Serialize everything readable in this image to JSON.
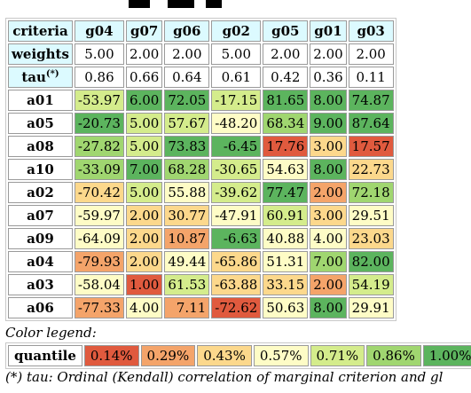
{
  "colors": {
    "q1": "#e05a3e",
    "q2": "#f4a46a",
    "q3": "#fcd88c",
    "q4": "#fefcc6",
    "q5": "#d4ec8c",
    "q6": "#a0d670",
    "q7": "#5cb45e",
    "header_bg": "#dcfaff"
  },
  "table": {
    "criteria_label": "criteria",
    "weights_label": "weights",
    "tau_label": "tau",
    "tau_mark": "(*)",
    "columns": [
      "g04",
      "g07",
      "g06",
      "g02",
      "g05",
      "g01",
      "g03"
    ],
    "weights": [
      "5.00",
      "2.00",
      "2.00",
      "5.00",
      "2.00",
      "2.00",
      "2.00"
    ],
    "tau": [
      "0.86",
      "0.66",
      "0.64",
      "0.61",
      "0.42",
      "0.36",
      "0.11"
    ],
    "rows": [
      {
        "name": "a01",
        "cells": [
          {
            "v": "-53.97",
            "c": "q5"
          },
          {
            "v": "6.00",
            "c": "q7"
          },
          {
            "v": "72.05",
            "c": "q7"
          },
          {
            "v": "-17.15",
            "c": "q5"
          },
          {
            "v": "81.65",
            "c": "q7"
          },
          {
            "v": "8.00",
            "c": "q7"
          },
          {
            "v": "74.87",
            "c": "q7"
          }
        ]
      },
      {
        "name": "a05",
        "cells": [
          {
            "v": "-20.73",
            "c": "q7"
          },
          {
            "v": "5.00",
            "c": "q5"
          },
          {
            "v": "57.67",
            "c": "q5"
          },
          {
            "v": "-48.20",
            "c": "q4"
          },
          {
            "v": "68.34",
            "c": "q6"
          },
          {
            "v": "9.00",
            "c": "q7"
          },
          {
            "v": "87.64",
            "c": "q7"
          }
        ]
      },
      {
        "name": "a08",
        "cells": [
          {
            "v": "-27.82",
            "c": "q6"
          },
          {
            "v": "5.00",
            "c": "q5"
          },
          {
            "v": "73.83",
            "c": "q7"
          },
          {
            "v": "-6.45",
            "c": "q7"
          },
          {
            "v": "17.76",
            "c": "q1"
          },
          {
            "v": "3.00",
            "c": "q3"
          },
          {
            "v": "17.57",
            "c": "q1"
          }
        ]
      },
      {
        "name": "a10",
        "cells": [
          {
            "v": "-33.09",
            "c": "q6"
          },
          {
            "v": "7.00",
            "c": "q7"
          },
          {
            "v": "68.28",
            "c": "q6"
          },
          {
            "v": "-30.65",
            "c": "q5"
          },
          {
            "v": "54.63",
            "c": "q4"
          },
          {
            "v": "8.00",
            "c": "q7"
          },
          {
            "v": "22.73",
            "c": "q3"
          }
        ]
      },
      {
        "name": "a02",
        "cells": [
          {
            "v": "-70.42",
            "c": "q3"
          },
          {
            "v": "5.00",
            "c": "q5"
          },
          {
            "v": "55.88",
            "c": "q4"
          },
          {
            "v": "-39.62",
            "c": "q5"
          },
          {
            "v": "77.47",
            "c": "q7"
          },
          {
            "v": "2.00",
            "c": "q2"
          },
          {
            "v": "72.18",
            "c": "q6"
          }
        ]
      },
      {
        "name": "a07",
        "cells": [
          {
            "v": "-59.97",
            "c": "q4"
          },
          {
            "v": "2.00",
            "c": "q3"
          },
          {
            "v": "30.77",
            "c": "q3"
          },
          {
            "v": "-47.91",
            "c": "q4"
          },
          {
            "v": "60.91",
            "c": "q5"
          },
          {
            "v": "3.00",
            "c": "q3"
          },
          {
            "v": "29.51",
            "c": "q4"
          }
        ]
      },
      {
        "name": "a09",
        "cells": [
          {
            "v": "-64.09",
            "c": "q4"
          },
          {
            "v": "2.00",
            "c": "q3"
          },
          {
            "v": "10.87",
            "c": "q2"
          },
          {
            "v": "-6.63",
            "c": "q7"
          },
          {
            "v": "40.88",
            "c": "q4"
          },
          {
            "v": "4.00",
            "c": "q4"
          },
          {
            "v": "23.03",
            "c": "q3"
          }
        ]
      },
      {
        "name": "a04",
        "cells": [
          {
            "v": "-79.93",
            "c": "q2"
          },
          {
            "v": "2.00",
            "c": "q3"
          },
          {
            "v": "49.44",
            "c": "q4"
          },
          {
            "v": "-65.86",
            "c": "q3"
          },
          {
            "v": "51.31",
            "c": "q4"
          },
          {
            "v": "7.00",
            "c": "q6"
          },
          {
            "v": "82.00",
            "c": "q7"
          }
        ]
      },
      {
        "name": "a03",
        "cells": [
          {
            "v": "-58.04",
            "c": "q4"
          },
          {
            "v": "1.00",
            "c": "q1"
          },
          {
            "v": "61.53",
            "c": "q5"
          },
          {
            "v": "-63.88",
            "c": "q3"
          },
          {
            "v": "33.15",
            "c": "q3"
          },
          {
            "v": "2.00",
            "c": "q2"
          },
          {
            "v": "54.19",
            "c": "q5"
          }
        ]
      },
      {
        "name": "a06",
        "cells": [
          {
            "v": "-77.33",
            "c": "q2"
          },
          {
            "v": "4.00",
            "c": "q4"
          },
          {
            "v": "7.11",
            "c": "q2"
          },
          {
            "v": "-72.62",
            "c": "q1"
          },
          {
            "v": "50.63",
            "c": "q4"
          },
          {
            "v": "8.00",
            "c": "q7"
          },
          {
            "v": "29.91",
            "c": "q4"
          }
        ]
      }
    ]
  },
  "legend": {
    "title": "Color legend:",
    "label": "quantile",
    "items": [
      {
        "text": "0.14%",
        "c": "q1"
      },
      {
        "text": "0.29%",
        "c": "q2"
      },
      {
        "text": "0.43%",
        "c": "q3"
      },
      {
        "text": "0.57%",
        "c": "q4"
      },
      {
        "text": "0.71%",
        "c": "q5"
      },
      {
        "text": "0.86%",
        "c": "q6"
      },
      {
        "text": "1.00%",
        "c": "q7"
      }
    ]
  },
  "footnote": "(*) tau: Ordinal (Kendall) correlation of marginal criterion and gl"
}
